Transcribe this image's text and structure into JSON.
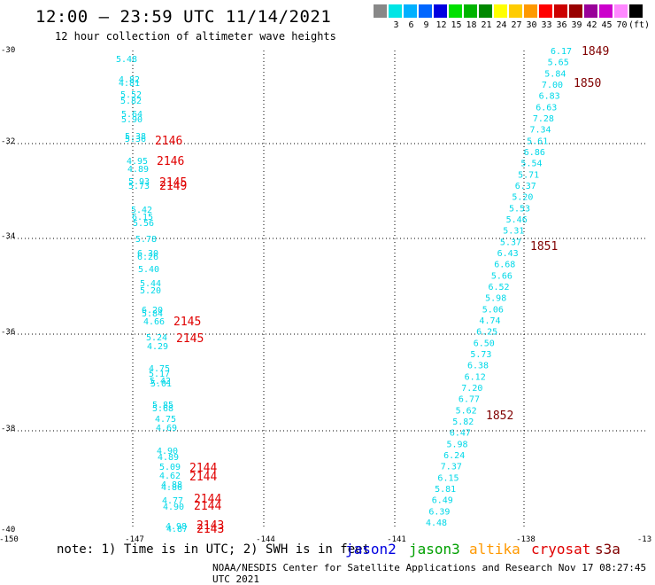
{
  "header": {
    "title": "12:00 – 23:59 UTC 11/14/2021",
    "subtitle": "12 hour collection of altimeter wave heights"
  },
  "color_scale": {
    "unit_label": "(ft)",
    "bins": [
      {
        "label": "",
        "color": "#888888"
      },
      {
        "label": "3",
        "color": "#00e5e5"
      },
      {
        "label": "6",
        "color": "#00b0ff"
      },
      {
        "label": "9",
        "color": "#0066ff"
      },
      {
        "label": "12",
        "color": "#0000e0"
      },
      {
        "label": "15",
        "color": "#00e000"
      },
      {
        "label": "18",
        "color": "#00b400"
      },
      {
        "label": "21",
        "color": "#008800"
      },
      {
        "label": "24",
        "color": "#ffff00"
      },
      {
        "label": "27",
        "color": "#ffcc00"
      },
      {
        "label": "30",
        "color": "#ff9900"
      },
      {
        "label": "33",
        "color": "#ff0000"
      },
      {
        "label": "36",
        "color": "#cc0000"
      },
      {
        "label": "39",
        "color": "#990000"
      },
      {
        "label": "42",
        "color": "#990099"
      },
      {
        "label": "45",
        "color": "#cc00cc"
      },
      {
        "label": "70",
        "color": "#ff88ff"
      },
      {
        "label": "",
        "color": "#000000"
      }
    ]
  },
  "axes": {
    "x_ticks": [
      "-150",
      "-147",
      "-144",
      "-141",
      "-138",
      "-13"
    ],
    "y_ticks": [
      "-30",
      "-32",
      "-34",
      "-36",
      "-38",
      "-40"
    ]
  },
  "colors": {
    "value_text": "#00d8e8",
    "time_jason_track": "#e00000",
    "time_s3a_track": "#800000"
  },
  "track_left": {
    "values": [
      "5.48",
      "4.82",
      "4.81",
      "5.52",
      "5.82",
      "5.64",
      "5.90",
      "5.38",
      "5.36",
      "4.95",
      "4.89",
      "5.93",
      "5.73",
      "5.42",
      "6.15",
      "5.56",
      "5.78",
      "6.30",
      "6.26",
      "5.40",
      "5.44",
      "5.20",
      "6.20",
      "5.84",
      "4.66",
      "5.24",
      "4.29",
      "4.75",
      "5.17",
      "5.42",
      "5.01",
      "5.85",
      "5.68",
      "4.75",
      "4.69",
      "4.90",
      "4.89",
      "5.09",
      "4.62",
      "4.88",
      "4.86",
      "4.77",
      "4.90",
      "4.98",
      "4.87"
    ],
    "times": [
      "2146",
      "2146",
      "2145",
      "2149",
      "2145",
      "2145",
      "2144",
      "2144",
      "2144",
      "2144",
      "2143",
      "2143"
    ]
  },
  "track_right": {
    "values": [
      "6.17",
      "5.65",
      "5.84",
      "7.00",
      "6.83",
      "6.63",
      "7.28",
      "7.34",
      "5.61",
      "6.86",
      "5.54",
      "5.71",
      "6.37",
      "5.20",
      "5.53",
      "5.46",
      "5.31",
      "5.37",
      "6.43",
      "6.68",
      "5.66",
      "6.52",
      "5.98",
      "5.06",
      "4.74",
      "6.25",
      "6.50",
      "5.73",
      "6.38",
      "6.12",
      "7.20",
      "6.77",
      "5.62",
      "5.82",
      "6.47",
      "5.98",
      "6.24",
      "7.37",
      "6.15",
      "5.81",
      "6.49",
      "6.39",
      "4.48"
    ],
    "times": [
      "1849",
      "1850",
      "1851",
      "1852"
    ]
  },
  "note": "note:  1) Time is in UTC;  2) SWH is in feet",
  "legend": [
    {
      "name": "jason2",
      "color": "#0000e0"
    },
    {
      "name": "jason3",
      "color": "#00a000"
    },
    {
      "name": "altika",
      "color": "#ff9900"
    },
    {
      "name": "cryosat",
      "color": "#e00000"
    },
    {
      "name": "s3a",
      "color": "#800000"
    }
  ],
  "footer": "NOAA/NESDIS Center for Satellite Applications and Research   Nov 17 08:27:45 UTC 2021"
}
